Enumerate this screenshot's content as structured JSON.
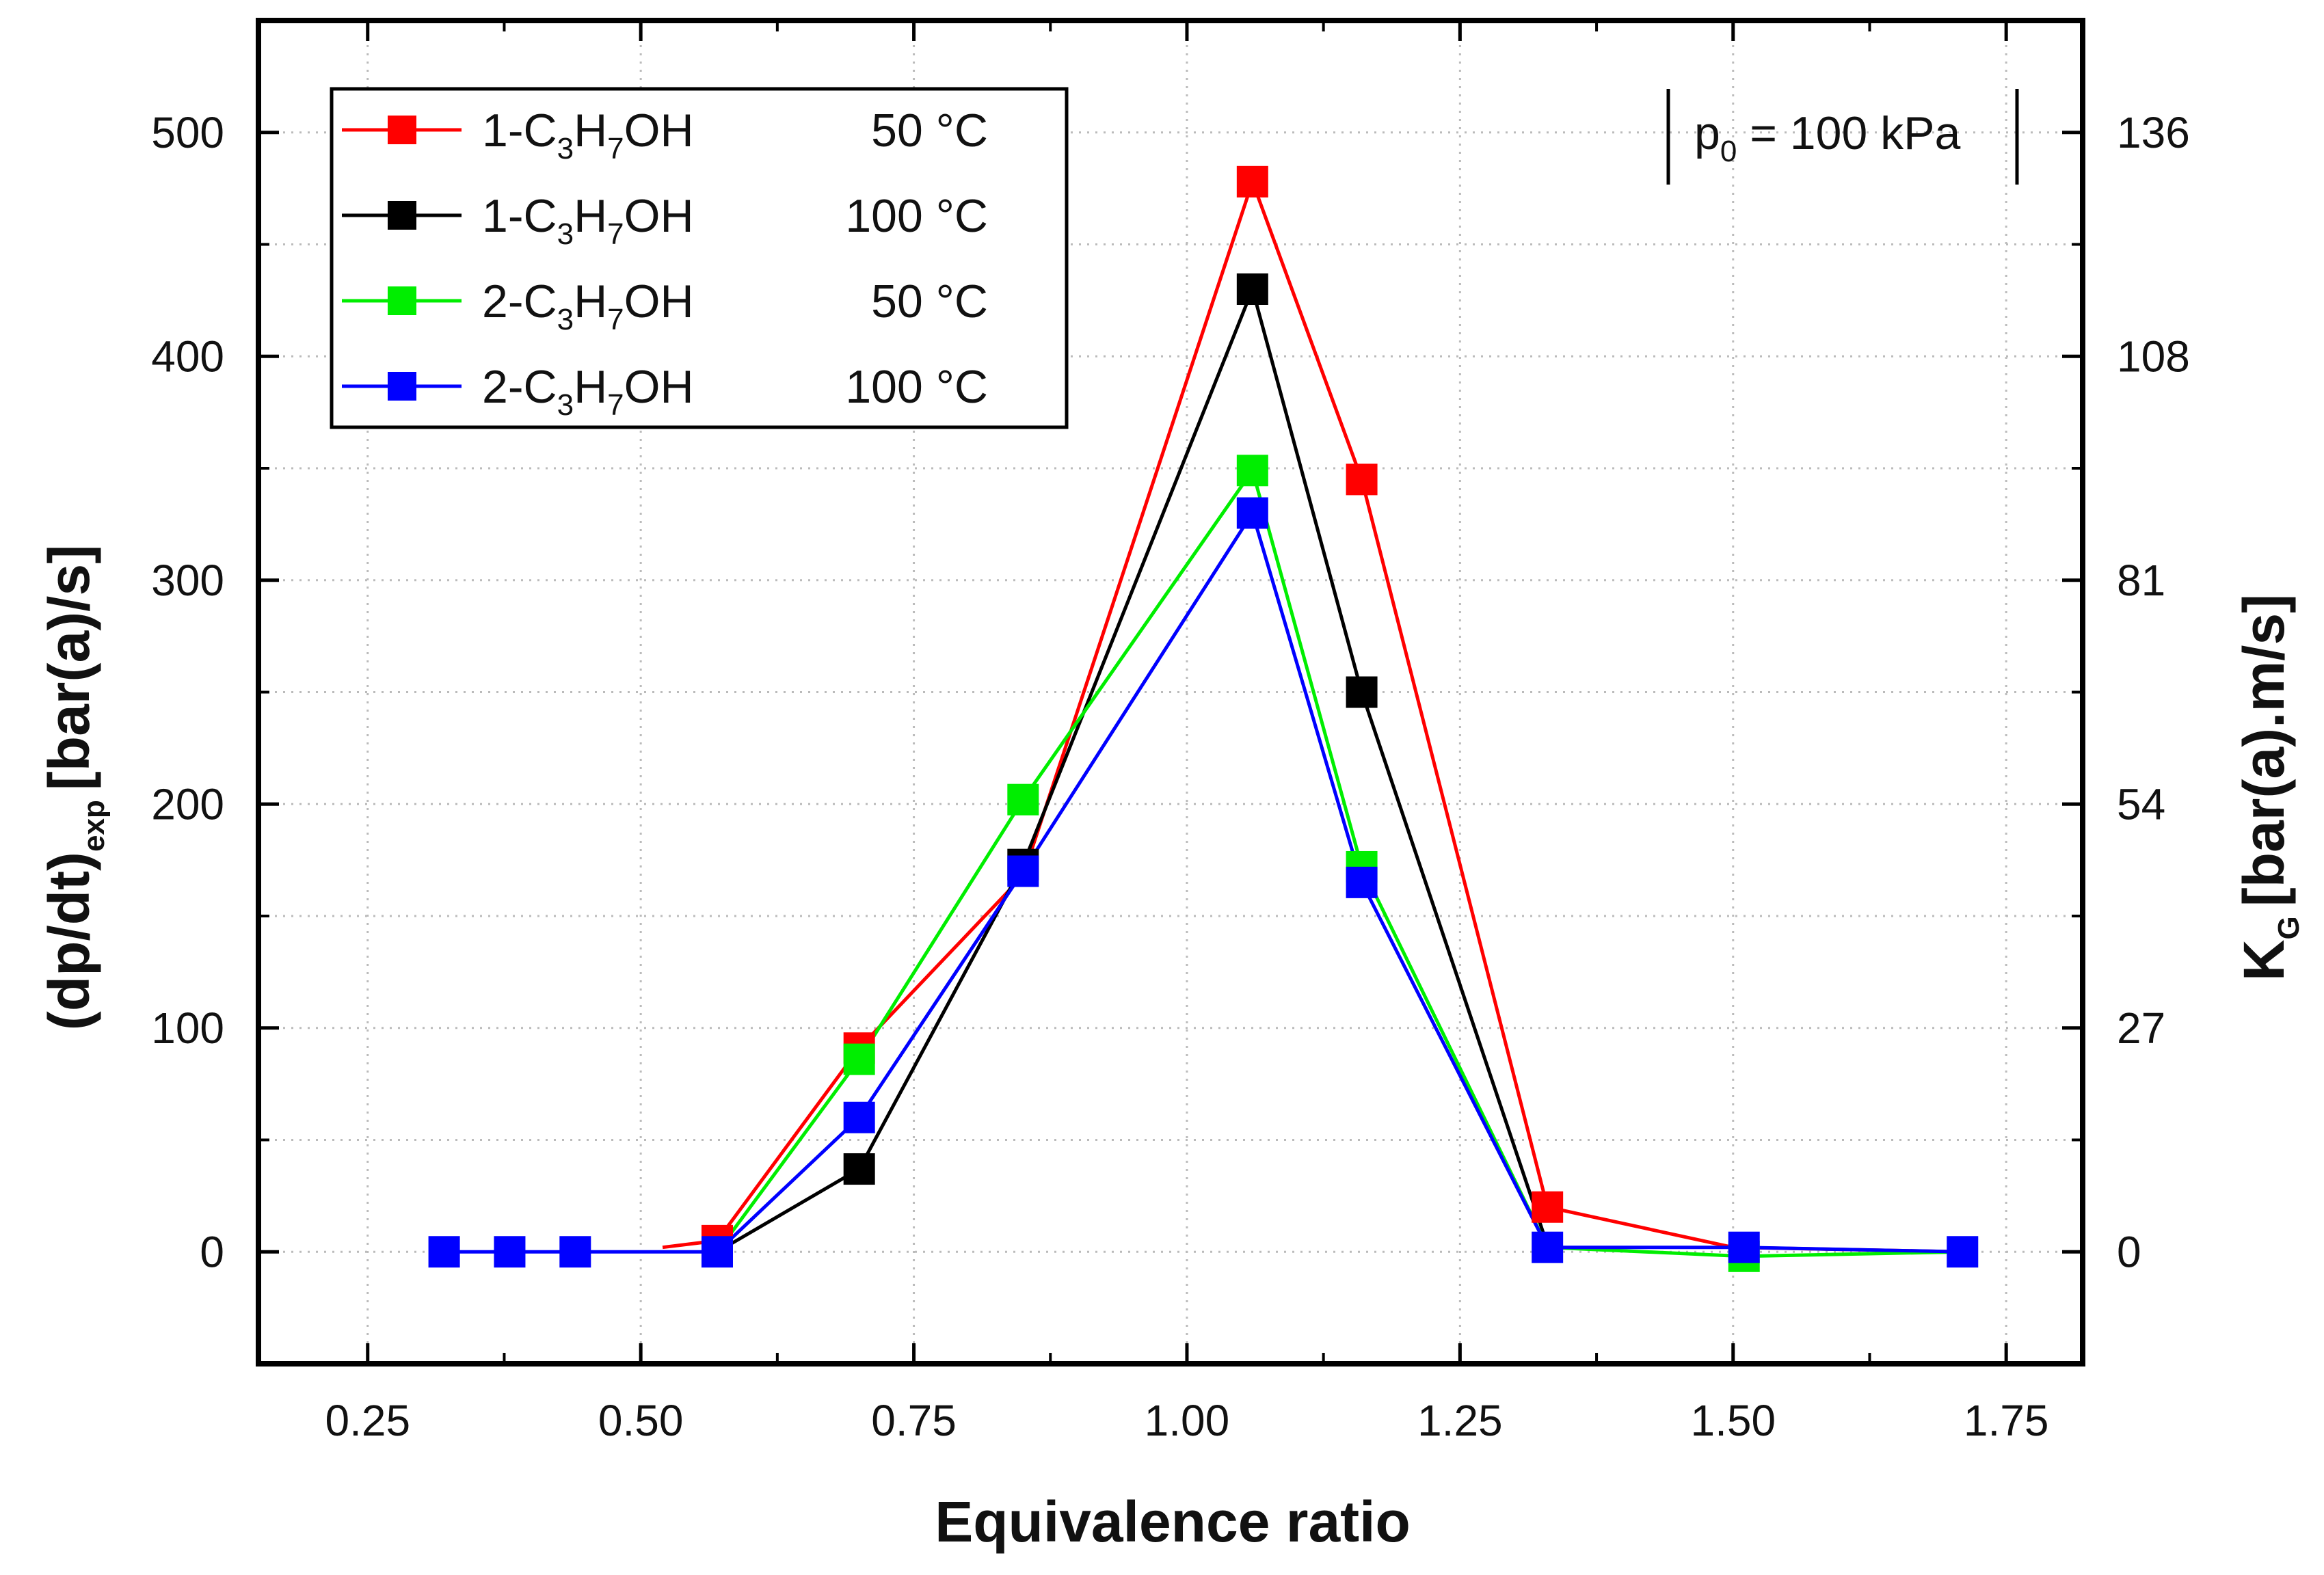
{
  "chart_data": {
    "type": "line",
    "xlabel": "Equivalence ratio",
    "ylabel_main": "(dp/dt)",
    "ylabel_sub": "exp",
    "ylabel_unit": "[bar(a)/s]",
    "y2label_main": "K",
    "y2label_sub": "G",
    "y2label_unit": "[bar(a).m/s]",
    "xlim": [
      0.15,
      1.82
    ],
    "ylim": [
      -50,
      550
    ],
    "x_ticks": [
      "0.25",
      "0.50",
      "0.75",
      "1.00",
      "1.25",
      "1.50",
      "1.75"
    ],
    "x_tick_values": [
      0.25,
      0.5,
      0.75,
      1.0,
      1.25,
      1.5,
      1.75
    ],
    "y_ticks": [
      "0",
      "100",
      "200",
      "300",
      "400",
      "500"
    ],
    "y_tick_values": [
      0,
      100,
      200,
      300,
      400,
      500
    ],
    "y2_ticks": [
      "0",
      "27",
      "54",
      "81",
      "108",
      "136"
    ],
    "annotation": {
      "prefix": "p",
      "sub": "0",
      "suffix": " = 100 kPa"
    },
    "series": [
      {
        "name": "1-C3H7OH",
        "label_pre": "1-C",
        "label_sub1": "3",
        "label_mid": "H",
        "label_sub2": "7",
        "label_post": "OH",
        "temp": "50 °C",
        "color": "#ff0000",
        "x": [
          0.52,
          0.57,
          0.7,
          0.85,
          1.06,
          1.16,
          1.33,
          1.5,
          1.71
        ],
        "y": [
          2,
          5,
          91,
          168,
          478,
          345,
          20,
          2,
          0
        ],
        "markers": [
          false,
          true,
          true,
          false,
          true,
          true,
          true,
          false,
          false
        ]
      },
      {
        "name": "1-C3H7OH",
        "label_pre": "1-C",
        "label_sub1": "3",
        "label_mid": "H",
        "label_sub2": "7",
        "label_post": "OH",
        "temp": "100 °C",
        "color": "#000000",
        "x": [
          0.57,
          0.7,
          0.85,
          1.06,
          1.16,
          1.33
        ],
        "y": [
          0,
          37,
          173,
          430,
          250,
          3
        ],
        "markers": [
          false,
          true,
          true,
          true,
          true,
          false
        ]
      },
      {
        "name": "2-C3H7OH",
        "label_pre": "2-C",
        "label_sub1": "3",
        "label_mid": "H",
        "label_sub2": "7",
        "label_post": "OH",
        "temp": "50 °C",
        "color": "#00ee00",
        "x": [
          0.57,
          0.7,
          0.85,
          1.06,
          1.16,
          1.33,
          1.51,
          1.71
        ],
        "y": [
          0,
          86,
          202,
          349,
          172,
          2,
          -2,
          0
        ],
        "markers": [
          false,
          true,
          true,
          true,
          true,
          false,
          true,
          false
        ]
      },
      {
        "name": "2-C3H7OH",
        "label_pre": "2-C",
        "label_sub1": "3",
        "label_mid": "H",
        "label_sub2": "7",
        "label_post": "OH",
        "temp": "100 °C",
        "color": "#0000ff",
        "x": [
          0.32,
          0.38,
          0.44,
          0.57,
          0.7,
          0.85,
          1.06,
          1.16,
          1.33,
          1.51,
          1.71
        ],
        "y": [
          0,
          0,
          0,
          0,
          60,
          170,
          330,
          165,
          2,
          2,
          0
        ],
        "markers": [
          true,
          true,
          true,
          true,
          true,
          true,
          true,
          true,
          true,
          true,
          true
        ]
      }
    ]
  }
}
